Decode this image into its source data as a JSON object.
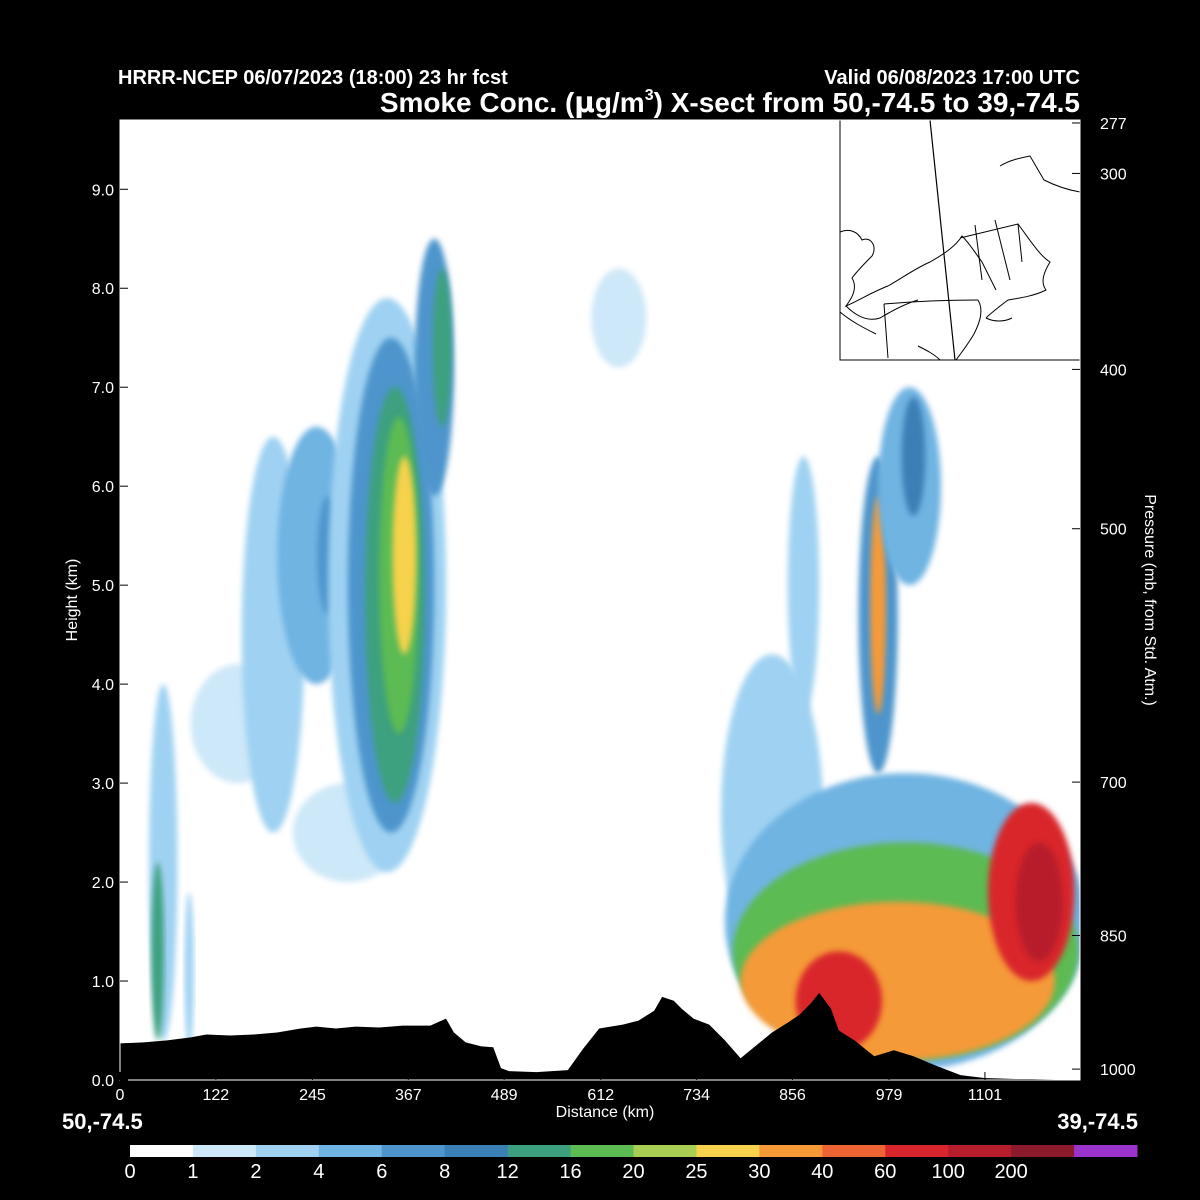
{
  "header": {
    "model_run": "HRRR-NCEP 06/07/2023 (18:00) 23 hr fcst",
    "valid": "Valid 06/08/2023 17:00 UTC",
    "title_prefix": "Smoke Conc. (",
    "title_mu": "μ",
    "title_g": "g/m",
    "title_sup": "3",
    "title_suffix": ") X-sect from 50,-74.5 to 39,-74.5"
  },
  "endpoints": {
    "start": "50,-74.5",
    "end": "39,-74.5"
  },
  "chart_data": {
    "type": "heatmap",
    "title": "Smoke Conc. (μg/m3) X-sect from 50,-74.5 to 39,-74.5",
    "xlabel": "Distance (km)",
    "ylabel": "Height (km)",
    "y2label": "Pressure (mb, from Std. Atm.)",
    "xlim": [
      0,
      1222
    ],
    "ylim": [
      0.0,
      9.7
    ],
    "x_ticks": [
      "0",
      "122",
      "245",
      "367",
      "489",
      "612",
      "734",
      "856",
      "979",
      "1101"
    ],
    "x_tick_values": [
      0,
      122,
      245,
      367,
      489,
      612,
      734,
      856,
      979,
      1101
    ],
    "y_ticks": [
      "0.0",
      "1.0",
      "2.0",
      "3.0",
      "4.0",
      "5.0",
      "6.0",
      "7.0",
      "8.0",
      "9.0"
    ],
    "y_tick_values": [
      0,
      1,
      2,
      3,
      4,
      5,
      6,
      7,
      8,
      9
    ],
    "pressure_ticks": [
      "277",
      "300",
      "400",
      "500",
      "700",
      "850",
      "1000"
    ],
    "pressure_heights_km": [
      9.67,
      9.16,
      7.18,
      5.57,
      3.01,
      1.46,
      0.11
    ],
    "colorbar_labels": [
      "0",
      "1",
      "2",
      "4",
      "6",
      "8",
      "12",
      "16",
      "20",
      "25",
      "30",
      "40",
      "60",
      "100",
      "200"
    ],
    "colorbar_colors": [
      "#ffffff",
      "#cde8f8",
      "#9fd2f2",
      "#6fb4e2",
      "#4d95cc",
      "#3a7fb6",
      "#3da07e",
      "#5cbb52",
      "#a8cf54",
      "#f7d24c",
      "#f59a37",
      "#ee6432",
      "#d9262c",
      "#b71e2b",
      "#8a1a2c",
      "#9a33cc"
    ],
    "terrain": [
      [
        0,
        0.37
      ],
      [
        30,
        0.38
      ],
      [
        60,
        0.4
      ],
      [
        90,
        0.43
      ],
      [
        110,
        0.46
      ],
      [
        140,
        0.45
      ],
      [
        170,
        0.46
      ],
      [
        200,
        0.48
      ],
      [
        230,
        0.52
      ],
      [
        250,
        0.54
      ],
      [
        275,
        0.52
      ],
      [
        300,
        0.54
      ],
      [
        330,
        0.53
      ],
      [
        360,
        0.55
      ],
      [
        395,
        0.55
      ],
      [
        415,
        0.62
      ],
      [
        425,
        0.48
      ],
      [
        440,
        0.38
      ],
      [
        460,
        0.34
      ],
      [
        475,
        0.33
      ],
      [
        485,
        0.12
      ],
      [
        495,
        0.09
      ],
      [
        530,
        0.08
      ],
      [
        570,
        0.1
      ],
      [
        590,
        0.32
      ],
      [
        610,
        0.52
      ],
      [
        640,
        0.56
      ],
      [
        660,
        0.6
      ],
      [
        680,
        0.7
      ],
      [
        690,
        0.84
      ],
      [
        705,
        0.8
      ],
      [
        715,
        0.72
      ],
      [
        730,
        0.62
      ],
      [
        750,
        0.56
      ],
      [
        770,
        0.4
      ],
      [
        790,
        0.22
      ],
      [
        810,
        0.35
      ],
      [
        830,
        0.48
      ],
      [
        850,
        0.58
      ],
      [
        865,
        0.66
      ],
      [
        880,
        0.78
      ],
      [
        890,
        0.88
      ],
      [
        905,
        0.72
      ],
      [
        915,
        0.5
      ],
      [
        935,
        0.4
      ],
      [
        960,
        0.24
      ],
      [
        985,
        0.3
      ],
      [
        1010,
        0.24
      ],
      [
        1040,
        0.14
      ],
      [
        1070,
        0.05
      ],
      [
        1100,
        0.02
      ],
      [
        1140,
        0.01
      ],
      [
        1160,
        0.01
      ],
      [
        1222,
        0.0
      ]
    ],
    "plumes": [
      {
        "x": 55,
        "y": 2.2,
        "rx": 18,
        "ry": 1.8,
        "level": 2
      },
      {
        "x": 48,
        "y": 1.3,
        "rx": 8,
        "ry": 0.9,
        "level": 6
      },
      {
        "x": 88,
        "y": 1.1,
        "rx": 6,
        "ry": 0.8,
        "level": 2
      },
      {
        "x": 150,
        "y": 3.6,
        "rx": 60,
        "ry": 0.6,
        "level": 1
      },
      {
        "x": 195,
        "y": 4.5,
        "rx": 40,
        "ry": 2.0,
        "level": 2
      },
      {
        "x": 250,
        "y": 5.3,
        "rx": 50,
        "ry": 1.3,
        "level": 3
      },
      {
        "x": 265,
        "y": 5.3,
        "rx": 14,
        "ry": 0.6,
        "level": 4
      },
      {
        "x": 290,
        "y": 2.5,
        "rx": 70,
        "ry": 0.5,
        "level": 1
      },
      {
        "x": 340,
        "y": 5.0,
        "rx": 75,
        "ry": 2.9,
        "level": 2
      },
      {
        "x": 345,
        "y": 5.0,
        "rx": 55,
        "ry": 2.5,
        "level": 4
      },
      {
        "x": 350,
        "y": 4.9,
        "rx": 38,
        "ry": 2.1,
        "level": 6
      },
      {
        "x": 355,
        "y": 5.1,
        "rx": 25,
        "ry": 1.6,
        "level": 7
      },
      {
        "x": 362,
        "y": 5.3,
        "rx": 15,
        "ry": 1.0,
        "level": 9
      },
      {
        "x": 400,
        "y": 7.2,
        "rx": 25,
        "ry": 1.3,
        "level": 4
      },
      {
        "x": 410,
        "y": 7.4,
        "rx": 12,
        "ry": 0.8,
        "level": 6
      },
      {
        "x": 635,
        "y": 7.7,
        "rx": 35,
        "ry": 0.5,
        "level": 1
      },
      {
        "x": 830,
        "y": 2.7,
        "rx": 65,
        "ry": 1.6,
        "level": 2
      },
      {
        "x": 870,
        "y": 5.0,
        "rx": 20,
        "ry": 1.3,
        "level": 2
      },
      {
        "x": 965,
        "y": 4.7,
        "rx": 25,
        "ry": 1.6,
        "level": 4
      },
      {
        "x": 965,
        "y": 4.8,
        "rx": 10,
        "ry": 1.1,
        "level": 10
      },
      {
        "x": 1005,
        "y": 6.0,
        "rx": 40,
        "ry": 1.0,
        "level": 3
      },
      {
        "x": 1010,
        "y": 6.3,
        "rx": 15,
        "ry": 0.6,
        "level": 5
      },
      {
        "x": 1000,
        "y": 1.6,
        "rx": 230,
        "ry": 1.5,
        "level": 3
      },
      {
        "x": 1000,
        "y": 1.3,
        "rx": 220,
        "ry": 1.1,
        "level": 7
      },
      {
        "x": 990,
        "y": 1.0,
        "rx": 200,
        "ry": 0.8,
        "level": 10
      },
      {
        "x": 915,
        "y": 0.8,
        "rx": 55,
        "ry": 0.5,
        "level": 12
      },
      {
        "x": 1160,
        "y": 1.9,
        "rx": 55,
        "ry": 0.9,
        "level": 12
      },
      {
        "x": 1170,
        "y": 1.8,
        "rx": 30,
        "ry": 0.6,
        "level": 13
      }
    ],
    "inset_map": "Northeast US locator map showing cross-section line"
  }
}
